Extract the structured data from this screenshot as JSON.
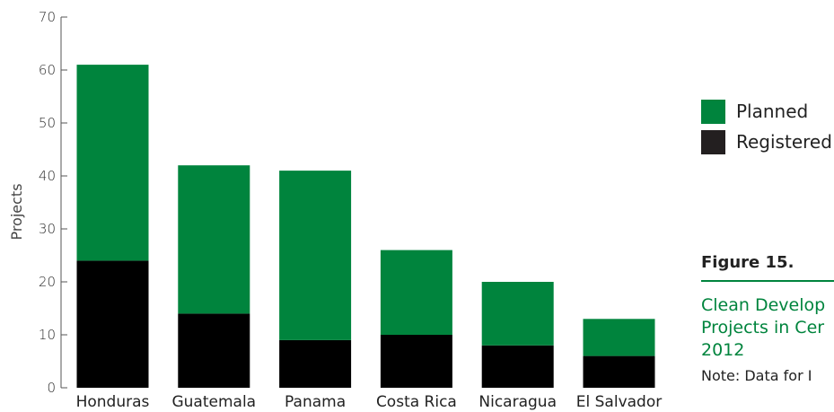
{
  "chart_data": {
    "type": "bar",
    "stacked": true,
    "categories": [
      "Honduras",
      "Guatemala",
      "Panama",
      "Costa Rica",
      "Nicaragua",
      "El Salvador"
    ],
    "series": [
      {
        "name": "Registered",
        "values": [
          24,
          14,
          9,
          10,
          8,
          6
        ],
        "color": "#000000"
      },
      {
        "name": "Planned",
        "values": [
          37,
          28,
          32,
          16,
          12,
          7
        ],
        "color": "#00843D"
      }
    ],
    "ylabel": "Projects",
    "ylim": [
      0,
      70
    ],
    "yticks": [
      "0",
      "10",
      "20",
      "30",
      "40",
      "50",
      "60",
      "70"
    ],
    "grid": false,
    "legend_position": "right"
  },
  "legend": {
    "items": [
      {
        "label": "Planned",
        "color": "#00843D"
      },
      {
        "label": "Registered",
        "color": "#231F20"
      }
    ]
  },
  "caption": {
    "figure_number": "Figure 15.",
    "title_line1": "Clean Develop",
    "title_line2": "Projects in Cer",
    "title_line3": "2012",
    "note": "Note: Data for I"
  }
}
